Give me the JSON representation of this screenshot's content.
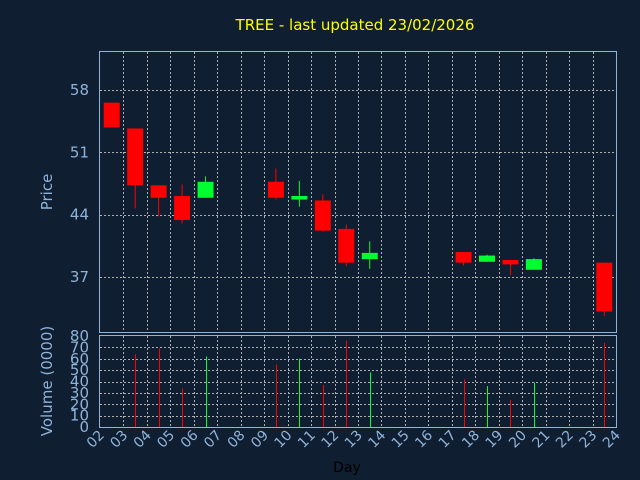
{
  "chart_data": {
    "type": "candlestick",
    "title": "TREE - last updated 23/02/2026",
    "xlabel": "Day",
    "price_panel": {
      "ylabel": "Price",
      "ylim": [
        30.8,
        62.3
      ],
      "yticks": [
        37,
        44,
        51,
        58
      ]
    },
    "volume_panel": {
      "ylabel": "Volume (0000)",
      "ylim": [
        0,
        80
      ],
      "yticks": [
        0,
        10,
        20,
        30,
        40,
        50,
        60,
        70,
        80
      ]
    },
    "x_ticks": [
      "02",
      "03",
      "04",
      "05",
      "06",
      "07",
      "08",
      "09",
      "10",
      "11",
      "12",
      "13",
      "14",
      "15",
      "16",
      "17",
      "18",
      "19",
      "20",
      "21",
      "22",
      "23",
      "24"
    ],
    "grid": true,
    "colors": {
      "up": "#00ff30",
      "down": "#ff0000",
      "title": "#ffff00",
      "axis_text": "#8fb3d9",
      "background": "#0f1e30",
      "grid": "#b0b0b0"
    },
    "candles": [
      {
        "day": 2,
        "open": 56.6,
        "high": 56.6,
        "low": 53.8,
        "close": 53.8,
        "volume": 0
      },
      {
        "day": 3,
        "open": 53.7,
        "high": 53.7,
        "low": 44.7,
        "close": 47.3,
        "volume": 64
      },
      {
        "day": 4,
        "open": 47.3,
        "high": 47.3,
        "low": 43.8,
        "close": 45.9,
        "volume": 69
      },
      {
        "day": 5,
        "open": 46.1,
        "high": 47.4,
        "low": 43.0,
        "close": 43.4,
        "volume": 34
      },
      {
        "day": 6,
        "open": 45.9,
        "high": 48.3,
        "low": 45.9,
        "close": 47.7,
        "volume": 62
      },
      {
        "day": 9,
        "open": 47.7,
        "high": 49.2,
        "low": 45.7,
        "close": 45.9,
        "volume": 55
      },
      {
        "day": 10,
        "open": 45.7,
        "high": 47.8,
        "low": 44.9,
        "close": 46.1,
        "volume": 60
      },
      {
        "day": 11,
        "open": 45.6,
        "high": 46.3,
        "low": 42.1,
        "close": 42.2,
        "volume": 37
      },
      {
        "day": 12,
        "open": 42.4,
        "high": 42.9,
        "low": 38.2,
        "close": 38.6,
        "volume": 76
      },
      {
        "day": 13,
        "open": 39.0,
        "high": 41.0,
        "low": 37.9,
        "close": 39.7,
        "volume": 48
      },
      {
        "day": 17,
        "open": 39.8,
        "high": 39.8,
        "low": 38.3,
        "close": 38.6,
        "volume": 42
      },
      {
        "day": 18,
        "open": 38.7,
        "high": 39.5,
        "low": 38.7,
        "close": 39.4,
        "volume": 36
      },
      {
        "day": 19,
        "open": 38.9,
        "high": 38.9,
        "low": 37.2,
        "close": 38.4,
        "volume": 24
      },
      {
        "day": 20,
        "open": 37.8,
        "high": 39.1,
        "low": 37.8,
        "close": 39.0,
        "volume": 39
      },
      {
        "day": 23,
        "open": 38.6,
        "high": 38.6,
        "low": 32.6,
        "close": 33.1,
        "volume": 74
      }
    ]
  }
}
